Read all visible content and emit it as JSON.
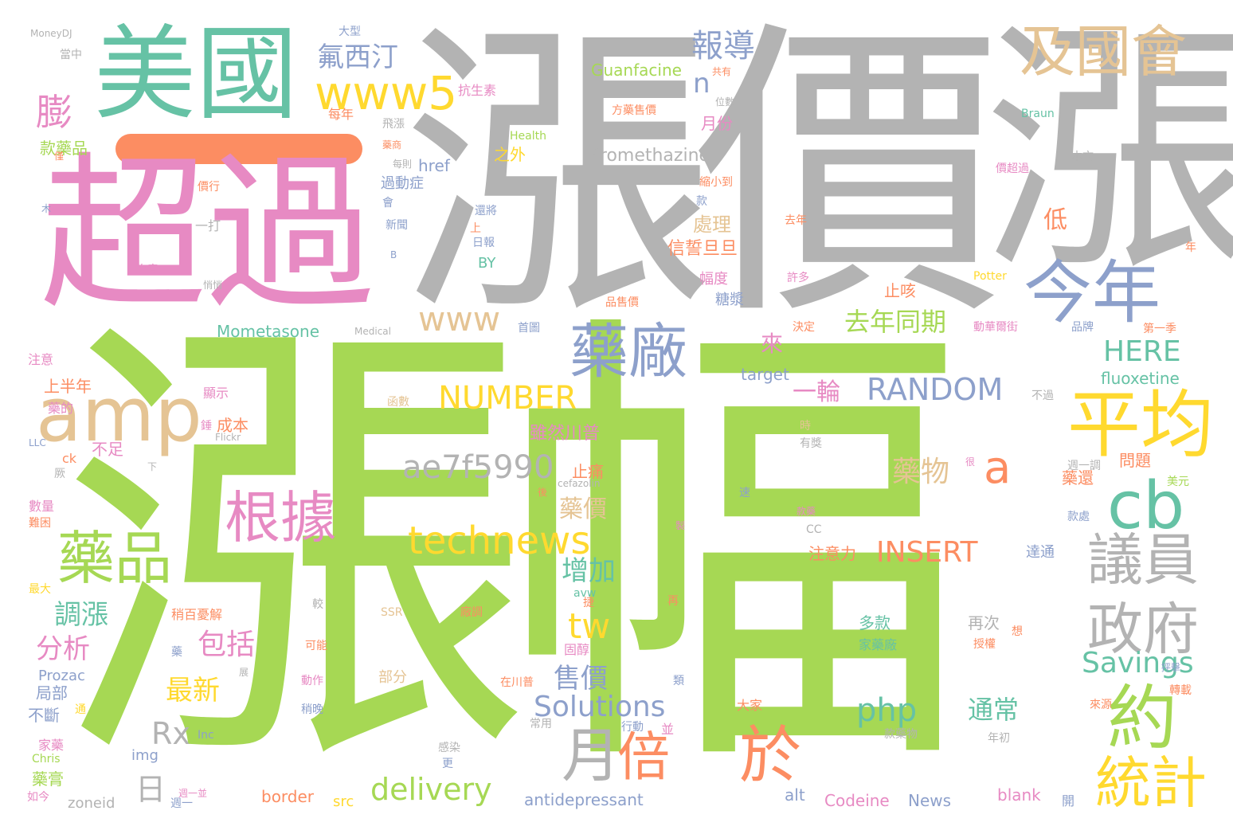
{
  "palette": {
    "green": "#a6d854",
    "gray": "#b3b3b3",
    "pink": "#e78ac3",
    "teal": "#66c2a5",
    "blue": "#8da0cb",
    "tan": "#e5c494",
    "orange": "#fc8d62",
    "yellow": "#ffd92f"
  },
  "words": [
    {
      "text": "漲幅",
      "color": "green"
    },
    {
      "text": "漲價",
      "color": "gray"
    },
    {
      "text": "漲",
      "color": "gray"
    },
    {
      "text": "超過",
      "color": "pink"
    },
    {
      "text": "美國",
      "color": "teal"
    },
    {
      "text": "今年",
      "color": "blue"
    },
    {
      "text": "及國會",
      "color": "tan"
    },
    {
      "text": "www5",
      "color": "yellow"
    },
    {
      "text": "amp",
      "color": "tan"
    },
    {
      "text": "平均",
      "color": "yellow"
    },
    {
      "text": "cb",
      "color": "teal"
    },
    {
      "text": "藥廠",
      "color": "blue"
    },
    {
      "text": "約",
      "color": "green"
    },
    {
      "text": "於",
      "color": "orange"
    },
    {
      "text": "倍",
      "color": "orange"
    },
    {
      "text": "月",
      "color": "gray"
    },
    {
      "text": "議員",
      "color": "gray"
    },
    {
      "text": "政府",
      "color": "gray"
    },
    {
      "text": "統計",
      "color": "yellow"
    },
    {
      "text": "根據",
      "color": "pink"
    },
    {
      "text": "藥品",
      "color": "green"
    },
    {
      "text": "technews",
      "color": "yellow"
    },
    {
      "text": "ae7f5990",
      "color": "gray"
    },
    {
      "text": "NUMBER",
      "color": "yellow"
    },
    {
      "text": "RANDOM",
      "color": "blue"
    },
    {
      "text": "INSERT",
      "color": "orange"
    },
    {
      "text": "www",
      "color": "tan"
    },
    {
      "text": "膨",
      "color": "pink"
    },
    {
      "text": "報導",
      "color": "blue"
    },
    {
      "text": "氟西汀",
      "color": "blue"
    },
    {
      "text": "a",
      "color": "orange"
    },
    {
      "text": "n",
      "color": "blue"
    },
    {
      "text": "去年同期",
      "color": "green"
    },
    {
      "text": "HERE",
      "color": "teal"
    },
    {
      "text": "藥物",
      "color": "tan"
    },
    {
      "text": "Savings",
      "color": "teal"
    },
    {
      "text": "tw",
      "color": "yellow"
    },
    {
      "text": "Solutions",
      "color": "blue"
    },
    {
      "text": "php",
      "color": "teal"
    },
    {
      "text": "通常",
      "color": "teal"
    },
    {
      "text": "delivery",
      "color": "green"
    },
    {
      "text": "Rx",
      "color": "gray"
    },
    {
      "text": "日",
      "color": "gray"
    },
    {
      "text": "包括",
      "color": "pink"
    },
    {
      "text": "分析",
      "color": "pink"
    },
    {
      "text": "最新",
      "color": "yellow"
    },
    {
      "text": "售價",
      "color": "blue"
    },
    {
      "text": "增加",
      "color": "teal"
    },
    {
      "text": "調漲",
      "color": "teal"
    },
    {
      "text": "藥價",
      "color": "tan"
    },
    {
      "text": "一輪",
      "color": "pink"
    },
    {
      "text": "雖然川普",
      "color": "pink"
    },
    {
      "text": "處理",
      "color": "tan"
    },
    {
      "text": "信誓旦旦",
      "color": "orange"
    },
    {
      "text": "月份",
      "color": "pink"
    },
    {
      "text": "低",
      "color": "orange"
    },
    {
      "text": "止咳",
      "color": "orange"
    },
    {
      "text": "來",
      "color": "pink"
    },
    {
      "text": "Promethazine",
      "color": "gray"
    },
    {
      "text": "Guanfacine",
      "color": "green"
    },
    {
      "text": "Mometasone",
      "color": "teal"
    },
    {
      "text": "fluoxetine",
      "color": "teal"
    },
    {
      "text": "target",
      "color": "blue"
    },
    {
      "text": "href",
      "color": "blue"
    },
    {
      "text": "款藥品",
      "color": "green"
    },
    {
      "text": "抗生素",
      "color": "pink"
    },
    {
      "text": "之外",
      "color": "yellow"
    },
    {
      "text": "上半年",
      "color": "orange"
    },
    {
      "text": "過動症",
      "color": "blue"
    },
    {
      "text": "幅度",
      "color": "pink"
    },
    {
      "text": "糖漿",
      "color": "blue"
    },
    {
      "text": "注意力",
      "color": "orange"
    },
    {
      "text": "達通",
      "color": "blue"
    },
    {
      "text": "多款",
      "color": "teal"
    },
    {
      "text": "再次",
      "color": "gray"
    },
    {
      "text": "家藥廠",
      "color": "teal"
    },
    {
      "text": "問題",
      "color": "orange"
    },
    {
      "text": "藥還",
      "color": "orange"
    },
    {
      "text": "止痛",
      "color": "orange"
    },
    {
      "text": "成本",
      "color": "orange"
    },
    {
      "text": "不足",
      "color": "pink"
    },
    {
      "text": "局部",
      "color": "blue"
    },
    {
      "text": "不斷",
      "color": "blue"
    },
    {
      "text": "Prozac",
      "color": "blue"
    },
    {
      "text": "藥膏",
      "color": "green"
    },
    {
      "text": "家藥",
      "color": "pink"
    },
    {
      "text": "Chris",
      "color": "green"
    },
    {
      "text": "img",
      "color": "blue"
    },
    {
      "text": "zoneid",
      "color": "gray"
    },
    {
      "text": "border",
      "color": "orange"
    },
    {
      "text": "src",
      "color": "yellow"
    },
    {
      "text": "alt",
      "color": "blue"
    },
    {
      "text": "antidepressant",
      "color": "blue"
    },
    {
      "text": "Codeine",
      "color": "pink"
    },
    {
      "text": "News",
      "color": "blue"
    },
    {
      "text": "blank",
      "color": "pink"
    },
    {
      "text": "MoneyDJ",
      "color": "gray"
    },
    {
      "text": "大型",
      "color": "blue"
    },
    {
      "text": "當中",
      "color": "gray"
    },
    {
      "text": "共有",
      "color": "orange"
    },
    {
      "text": "方藥售價",
      "color": "orange"
    },
    {
      "text": "位數",
      "color": "gray"
    },
    {
      "text": "Braun",
      "color": "teal"
    },
    {
      "text": "Health",
      "color": "green"
    },
    {
      "text": "本文",
      "color": "gray"
    },
    {
      "text": "價超過",
      "color": "pink"
    },
    {
      "text": "去年",
      "color": "orange"
    },
    {
      "text": "許多",
      "color": "pink"
    },
    {
      "text": "Potter",
      "color": "yellow"
    },
    {
      "text": "品售價",
      "color": "orange"
    },
    {
      "text": "Medical",
      "color": "gray"
    },
    {
      "text": "首圖",
      "color": "blue"
    },
    {
      "text": "決定",
      "color": "orange"
    },
    {
      "text": "動華爾街",
      "color": "pink"
    },
    {
      "text": "品牌",
      "color": "blue"
    },
    {
      "text": "第一季",
      "color": "orange"
    },
    {
      "text": "注意",
      "color": "pink"
    },
    {
      "text": "顯示",
      "color": "pink"
    },
    {
      "text": "函數",
      "color": "tan"
    },
    {
      "text": "Flickr",
      "color": "gray"
    },
    {
      "text": "LLC",
      "color": "blue"
    },
    {
      "text": "ck",
      "color": "orange"
    },
    {
      "text": "cefazolin",
      "color": "gray"
    },
    {
      "text": "週一調",
      "color": "gray"
    },
    {
      "text": "美元",
      "color": "green"
    },
    {
      "text": "款處",
      "color": "blue"
    },
    {
      "text": "數量",
      "color": "pink"
    },
    {
      "text": "難困",
      "color": "orange"
    },
    {
      "text": "最大",
      "color": "yellow"
    },
    {
      "text": "稍百憂解",
      "color": "orange"
    },
    {
      "text": "avw",
      "color": "teal"
    },
    {
      "text": "固醇",
      "color": "pink"
    },
    {
      "text": "廠調",
      "color": "orange"
    },
    {
      "text": "SSR",
      "color": "tan"
    },
    {
      "text": "可能",
      "color": "orange"
    },
    {
      "text": "動作",
      "color": "pink"
    },
    {
      "text": "稍晚",
      "color": "blue"
    },
    {
      "text": "在川普",
      "color": "orange"
    },
    {
      "text": "部分",
      "color": "tan"
    },
    {
      "text": "常用",
      "color": "gray"
    },
    {
      "text": "行動",
      "color": "blue"
    },
    {
      "text": "大家",
      "color": "orange"
    },
    {
      "text": "款藥物",
      "color": "gray"
    },
    {
      "text": "年初",
      "color": "gray"
    },
    {
      "text": "感染",
      "color": "gray"
    },
    {
      "text": "Inc",
      "color": "blue"
    },
    {
      "text": "週一",
      "color": "blue"
    },
    {
      "text": "週一並",
      "color": "pink"
    },
    {
      "text": "如今",
      "color": "pink"
    },
    {
      "text": "悄悄",
      "color": "gray"
    },
    {
      "text": "一打",
      "color": "gray"
    },
    {
      "text": "價行",
      "color": "orange"
    },
    {
      "text": "藥商",
      "color": "orange"
    },
    {
      "text": "每則",
      "color": "gray"
    },
    {
      "text": "會",
      "color": "blue"
    },
    {
      "text": "新聞",
      "color": "blue"
    },
    {
      "text": "還將",
      "color": "blue"
    },
    {
      "text": "上",
      "color": "orange"
    },
    {
      "text": "日報",
      "color": "blue"
    },
    {
      "text": "BY",
      "color": "teal"
    },
    {
      "text": "款",
      "color": "blue"
    },
    {
      "text": "縮小到",
      "color": "orange"
    },
    {
      "text": "捷",
      "color": "orange"
    },
    {
      "text": "每年",
      "color": "orange"
    },
    {
      "text": "飛漲",
      "color": "gray"
    },
    {
      "text": "治療",
      "color": "pink"
    },
    {
      "text": "款藥",
      "color": "pink"
    },
    {
      "text": "CC",
      "color": "gray"
    },
    {
      "text": "授權",
      "color": "orange"
    },
    {
      "text": "抨擊",
      "color": "blue"
    },
    {
      "text": "轉載",
      "color": "orange"
    },
    {
      "text": "來源",
      "color": "orange"
    },
    {
      "text": "開",
      "color": "blue"
    },
    {
      "text": "年",
      "color": "orange"
    },
    {
      "text": "很",
      "color": "pink"
    },
    {
      "text": "時",
      "color": "tan"
    },
    {
      "text": "有獎",
      "color": "gray"
    },
    {
      "text": "不過",
      "color": "gray"
    },
    {
      "text": "藥的",
      "color": "pink"
    },
    {
      "text": "錘",
      "color": "pink"
    },
    {
      "text": "下",
      "color": "gray"
    },
    {
      "text": "厥",
      "color": "gray"
    },
    {
      "text": "藥",
      "color": "blue"
    },
    {
      "text": "展",
      "color": "gray"
    },
    {
      "text": "並",
      "color": "pink"
    },
    {
      "text": "更",
      "color": "blue"
    },
    {
      "text": "較",
      "color": "gray"
    },
    {
      "text": "類",
      "color": "blue"
    },
    {
      "text": "再",
      "color": "orange"
    },
    {
      "text": "製",
      "color": "pink"
    },
    {
      "text": "速",
      "color": "blue"
    },
    {
      "text": "後",
      "color": "orange"
    },
    {
      "text": "想",
      "color": "orange"
    },
    {
      "text": "通",
      "color": "yellow"
    },
    {
      "text": "僅",
      "color": "orange"
    },
    {
      "text": "木",
      "color": "blue"
    },
    {
      "text": "B",
      "color": "blue"
    },
    {
      "text": "不",
      "color": "pink"
    }
  ]
}
